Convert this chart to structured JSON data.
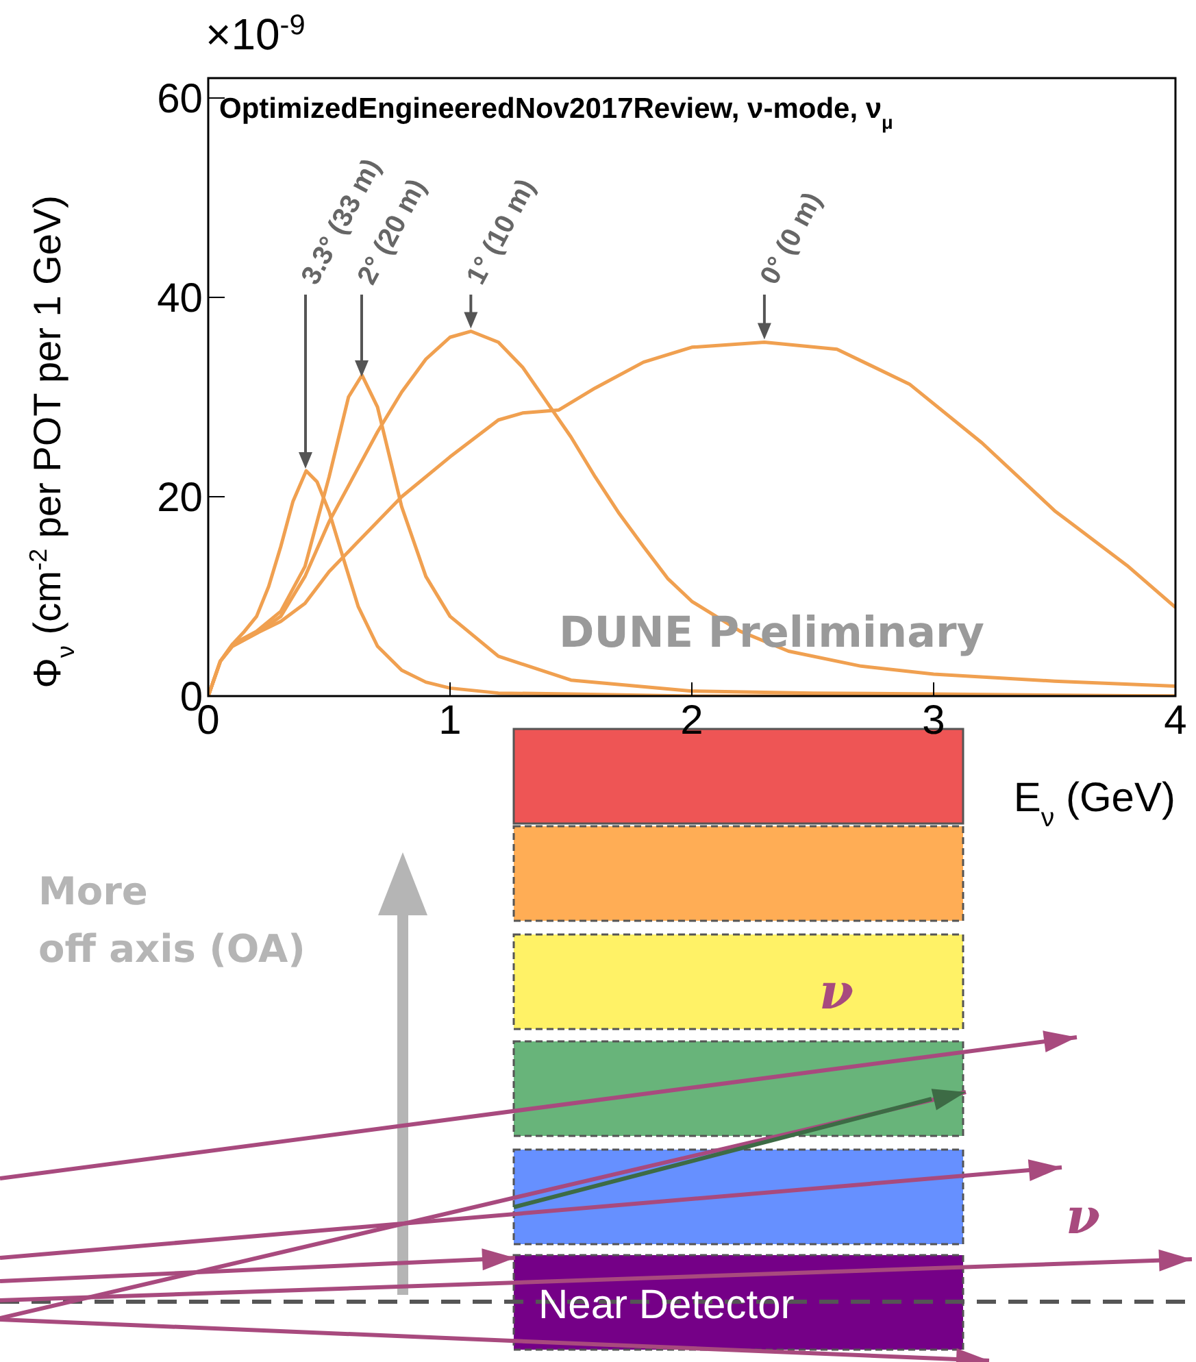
{
  "chart_data": {
    "type": "line",
    "title": "OptimizedEngineeredNov2017Review, ν-mode, ν$_{μ}$",
    "xlabel": "E$_{ν}$ (GeV)",
    "ylabel": "Φ$_{ν}$ (cm$^{-2}$ per POT per 1 GeV)",
    "xlim": [
      0,
      4
    ],
    "xticks": [
      0,
      1,
      2,
      3,
      4
    ],
    "ylim": [
      0,
      62
    ],
    "yticks": [
      0,
      20,
      40,
      60
    ],
    "marker": "none",
    "line_style": "solid",
    "series": [
      {
        "color": "#f0a050",
        "x": [
          0,
          0.05,
          0.1,
          0.15,
          0.2,
          0.25,
          0.3,
          0.35,
          0.405,
          0.45,
          0.5,
          0.55,
          0.62,
          0.7,
          0.8,
          0.9,
          1.0,
          1.2,
          1.5,
          2,
          3,
          4
        ],
        "values": [
          0,
          3.5,
          5.2,
          6.5,
          8,
          11,
          15,
          19.5,
          22.6,
          21.5,
          18.5,
          14.5,
          9,
          5,
          2.6,
          1.4,
          0.8,
          0.3,
          0.2,
          0,
          0,
          0
        ]
      },
      {
        "color": "#f0a050",
        "x": [
          0,
          0.05,
          0.1,
          0.2,
          0.3,
          0.4,
          0.5,
          0.58,
          0.636,
          0.7,
          0.8,
          0.9,
          1.0,
          1.2,
          1.5,
          2,
          2.5,
          3,
          4
        ],
        "values": [
          0,
          3.5,
          5.2,
          6.5,
          8.5,
          13,
          22,
          30,
          32.2,
          29,
          19,
          12,
          8,
          4,
          1.6,
          0.5,
          0.3,
          0.2,
          0
        ]
      },
      {
        "color": "#f0a050",
        "x": [
          0,
          0.05,
          0.1,
          0.2,
          0.3,
          0.4,
          0.5,
          0.6,
          0.7,
          0.8,
          0.9,
          1.0,
          1.086,
          1.2,
          1.3,
          1.4,
          1.5,
          1.6,
          1.7,
          1.8,
          1.9,
          2.0,
          2.2,
          2.4,
          2.7,
          3,
          3.5,
          4
        ],
        "values": [
          0,
          3.5,
          5,
          6.3,
          8,
          12,
          17.5,
          22,
          26.5,
          30.5,
          33.8,
          36,
          36.6,
          35.5,
          33,
          29.5,
          26,
          22,
          18.3,
          15,
          11.8,
          9.5,
          6.5,
          4.5,
          3,
          2.2,
          1.5,
          1.0
        ]
      },
      {
        "color": "#f0a050",
        "x": [
          0,
          0.05,
          0.1,
          0.2,
          0.3,
          0.4,
          0.5,
          0.6,
          0.8,
          1.0,
          1.2,
          1.3,
          1.45,
          1.6,
          1.8,
          2.0,
          2.3,
          2.6,
          2.9,
          3.2,
          3.5,
          3.8,
          4
        ],
        "values": [
          0,
          3.5,
          5,
          6.3,
          7.5,
          9.3,
          12.5,
          15,
          20,
          24,
          27.7,
          28.4,
          28.7,
          30.9,
          33.5,
          35,
          35.5,
          34.8,
          31.3,
          25.4,
          18.6,
          13.1,
          8.9
        ]
      }
    ],
    "annotations": [
      "×10$^{-9}$",
      "3.3° (33 m)",
      "2° (20 m)",
      {
        "text": "1° (10 m)",
        "x": 1.086,
        "y": 36.6
      },
      {
        "text": "0° (0 m)",
        "x": 2.3,
        "y": 35.5
      },
      "DUNE Preliminary",
      "More off axis (OA)",
      "Near Detector",
      "ν",
      "ν"
    ]
  }
}
